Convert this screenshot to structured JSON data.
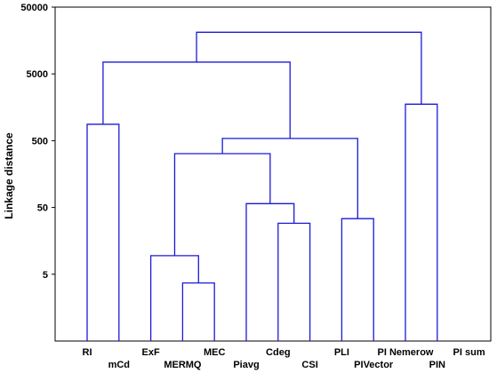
{
  "chart_data": {
    "type": "dendrogram",
    "ylabel": "Linkage distance",
    "y_scale": "log",
    "ylim": [
      0.5,
      50000
    ],
    "yticks": [
      5,
      50,
      500,
      5000,
      50000
    ],
    "ytick_labels": [
      "5",
      "50",
      "500",
      "5000",
      "50000"
    ],
    "leaves": [
      {
        "label": "RI",
        "row": 0
      },
      {
        "label": "mCd",
        "row": 1
      },
      {
        "label": "ExF",
        "row": 0
      },
      {
        "label": "MERMQ",
        "row": 1
      },
      {
        "label": "MEC",
        "row": 0
      },
      {
        "label": "Piavg",
        "row": 1
      },
      {
        "label": "Cdeg",
        "row": 0
      },
      {
        "label": "CSI",
        "row": 1
      },
      {
        "label": "PLI",
        "row": 0
      },
      {
        "label": "PIVector",
        "row": 1
      },
      {
        "label": "PI Nemerow",
        "row": 0
      },
      {
        "label": "PIN",
        "row": 1
      },
      {
        "label": "PI sum",
        "row": 0
      }
    ],
    "merges": [
      {
        "left": [
          3
        ],
        "right": [
          4
        ],
        "height": 3.7
      },
      {
        "left": [
          2
        ],
        "right": [
          3,
          4
        ],
        "height": 9.5
      },
      {
        "left": [
          6
        ],
        "right": [
          7
        ],
        "height": 29
      },
      {
        "left": [
          5
        ],
        "right": [
          6,
          7
        ],
        "height": 57
      },
      {
        "left": [
          8
        ],
        "right": [
          9
        ],
        "height": 34
      },
      {
        "left": [
          2,
          3,
          4
        ],
        "right": [
          5,
          6,
          7
        ],
        "height": 320
      },
      {
        "left": [
          2,
          3,
          4,
          5,
          6,
          7
        ],
        "right": [
          8,
          9
        ],
        "height": 540
      },
      {
        "left": [
          0
        ],
        "right": [
          1
        ],
        "height": 880
      },
      {
        "left": [
          10
        ],
        "right": [
          11
        ],
        "height": 1760
      },
      {
        "left": [
          0,
          1
        ],
        "right": [
          2,
          3,
          4,
          5,
          6,
          7,
          8,
          9
        ],
        "height": 7500
      },
      {
        "left": [
          0,
          1,
          2,
          3,
          4,
          5,
          6,
          7,
          8,
          9
        ],
        "right": [
          10,
          11
        ],
        "height": 21000
      }
    ],
    "colors": {
      "links": "#1a1ad6",
      "axes": "#000000"
    }
  }
}
